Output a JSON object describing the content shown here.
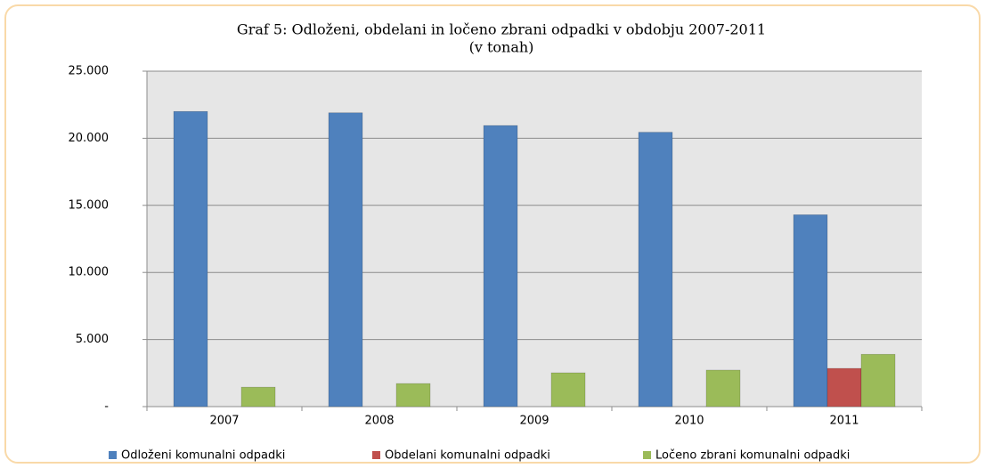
{
  "chart_data": {
    "type": "bar",
    "title": "Graf 5: Odloženi, obdelani in ločeno zbrani odpadki v obdobju 2007-2011",
    "subtitle": "(v tonah)",
    "categories": [
      "2007",
      "2008",
      "2009",
      "2010",
      "2011"
    ],
    "series": [
      {
        "name": "Odloženi komunalni odpadki",
        "color": "#4f81bd",
        "values": [
          22000,
          21900,
          20950,
          20450,
          14300
        ]
      },
      {
        "name": "Obdelani komunalni odpadki",
        "color": "#c0504d",
        "values": [
          null,
          null,
          null,
          null,
          2850
        ]
      },
      {
        "name": "Ločeno zbrani komunalni odpadki",
        "color": "#9bbb59",
        "values": [
          1450,
          1720,
          2520,
          2720,
          3900
        ]
      }
    ],
    "ylim": [
      0,
      25000
    ],
    "yticks": [
      {
        "value": 0,
        "label": "-"
      },
      {
        "value": 5000,
        "label": "5.000"
      },
      {
        "value": 10000,
        "label": "10.000"
      },
      {
        "value": 15000,
        "label": "15.000"
      },
      {
        "value": 20000,
        "label": "20.000"
      },
      {
        "value": 25000,
        "label": "25.000"
      }
    ],
    "grid": true,
    "legend": "bottom"
  }
}
